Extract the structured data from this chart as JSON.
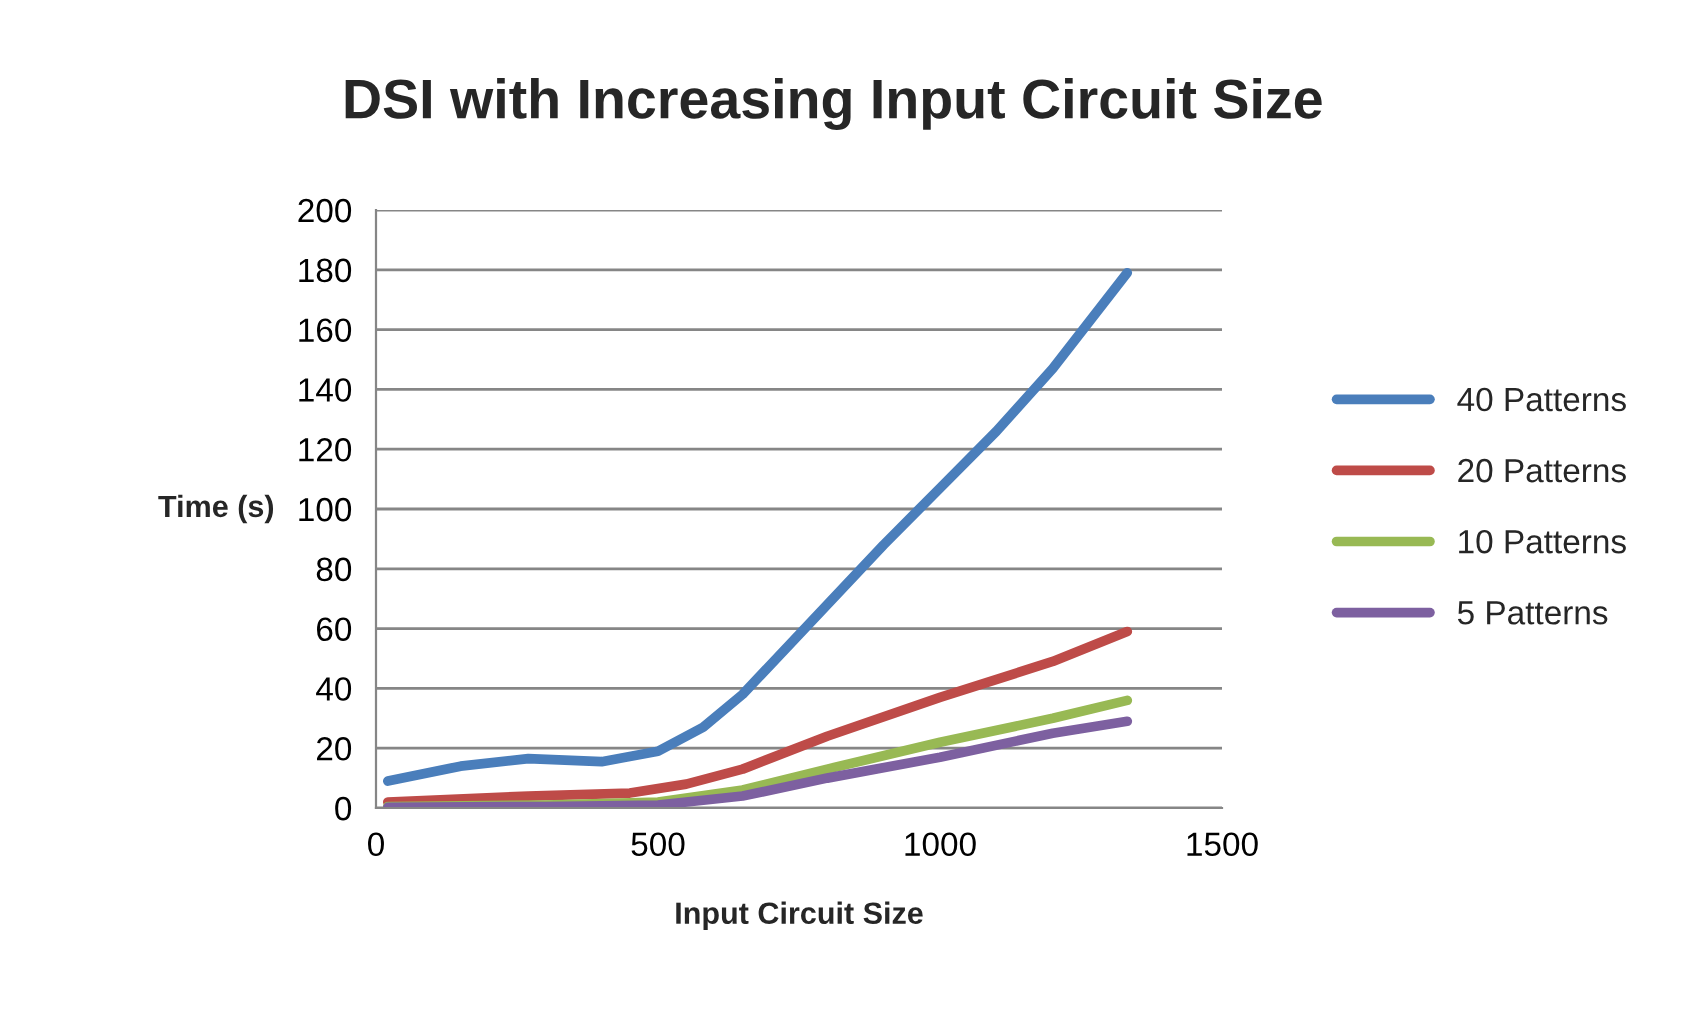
{
  "chart_data": {
    "type": "line",
    "title": "DSI with Increasing Input Circuit Size",
    "xlabel": "Input Circuit Size",
    "ylabel": "Time (s)",
    "xlim": [
      0,
      1500
    ],
    "xticks": [
      0,
      500,
      1000,
      1500
    ],
    "ylim": [
      0,
      200
    ],
    "yticks": [
      0,
      20,
      40,
      60,
      80,
      100,
      120,
      140,
      160,
      180,
      200
    ],
    "grid": "y",
    "legend": "right",
    "marker": "none",
    "line_style": "solid",
    "series": [
      {
        "name": "40 Patterns",
        "color": "#4a7ebb",
        "x": [
          21,
          150,
          270,
          400,
          500,
          580,
          650,
          750,
          900,
          1000,
          1100,
          1200,
          1332
        ],
        "values": [
          9,
          14,
          16.5,
          15.5,
          19,
          27,
          38,
          58,
          88,
          107,
          126,
          147,
          179
        ]
      },
      {
        "name": "20 Patterns",
        "color": "#be4b48",
        "x": [
          21,
          270,
          450,
          550,
          650,
          800,
          1000,
          1200,
          1332
        ],
        "values": [
          2,
          4,
          5,
          8,
          13,
          24,
          37,
          49,
          59
        ]
      },
      {
        "name": "10 Patterns",
        "color": "#98b954",
        "x": [
          21,
          300,
          500,
          650,
          800,
          1000,
          1200,
          1332
        ],
        "values": [
          0.5,
          1,
          2,
          6,
          13,
          22,
          30,
          36
        ]
      },
      {
        "name": "5 Patterns",
        "color": "#7d60a0",
        "x": [
          21,
          300,
          500,
          650,
          800,
          1000,
          1200,
          1332
        ],
        "values": [
          0.2,
          0.5,
          1,
          4,
          10,
          17,
          25,
          29
        ]
      }
    ]
  }
}
